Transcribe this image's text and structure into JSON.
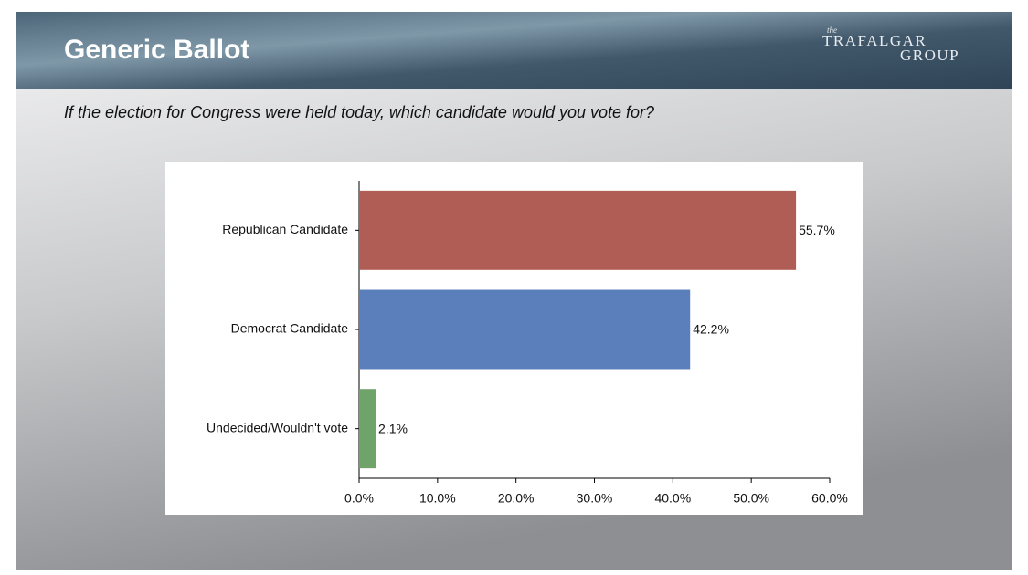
{
  "header": {
    "title": "Generic Ballot",
    "logo": {
      "small": "the",
      "top": "TRAFALGAR",
      "bottom": "GROUP"
    }
  },
  "question": "If the election for Congress were held today, which candidate would you vote for?",
  "chart_data": {
    "type": "bar",
    "orientation": "horizontal",
    "categories": [
      "Republican Candidate",
      "Democrat Candidate",
      "Undecided/Wouldn't vote"
    ],
    "values": [
      55.7,
      42.2,
      2.1
    ],
    "value_labels": [
      "55.7%",
      "42.2%",
      "2.1%"
    ],
    "colors": [
      "#b05e55",
      "#5b7fbb",
      "#6fa36a"
    ],
    "xlim": [
      0,
      60
    ],
    "xticks": [
      {
        "value": 0,
        "label": "0.0%"
      },
      {
        "value": 10,
        "label": "10.0%"
      },
      {
        "value": 20,
        "label": "20.0%"
      },
      {
        "value": 30,
        "label": "30.0%"
      },
      {
        "value": 40,
        "label": "40.0%"
      },
      {
        "value": 50,
        "label": "50.0%"
      },
      {
        "value": 60,
        "label": "60.0%"
      }
    ],
    "grid": false
  }
}
